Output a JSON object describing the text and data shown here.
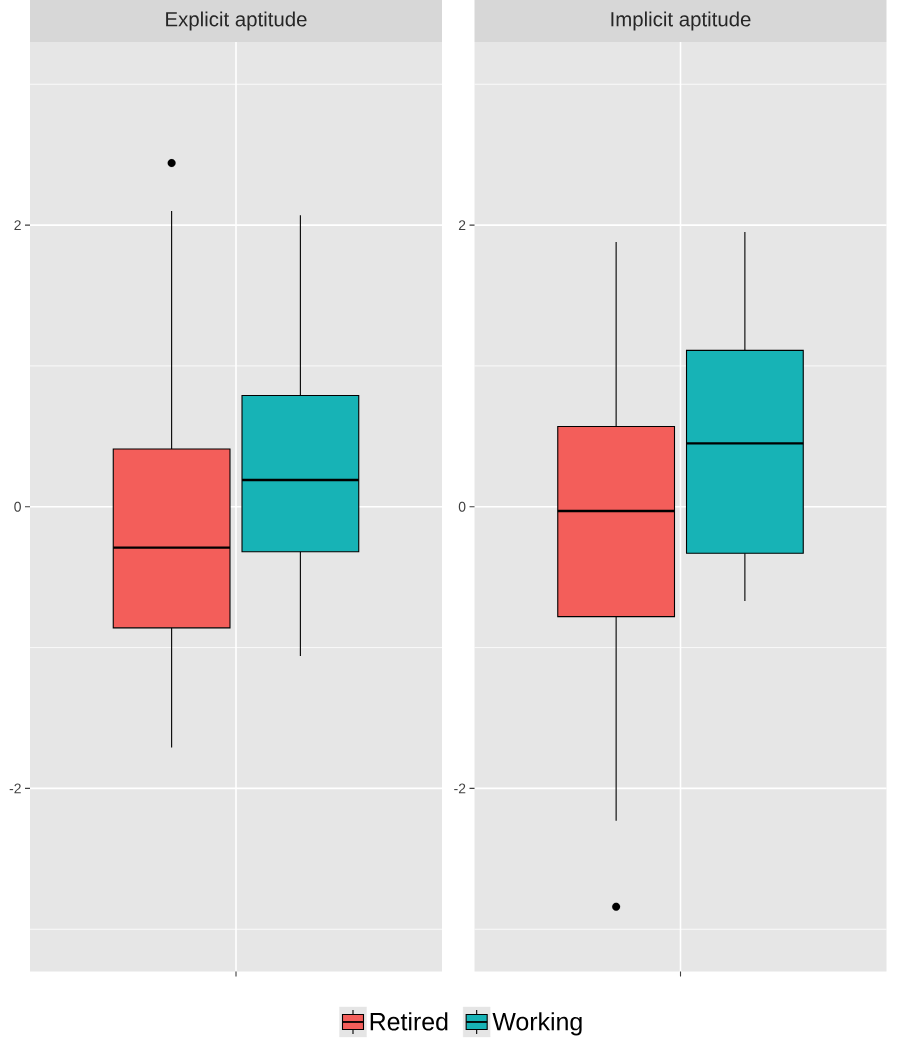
{
  "chart_data": [
    {
      "type": "box",
      "title": "Explicit aptitude",
      "categories": [
        null
      ],
      "series": [
        {
          "name": "Retired",
          "color": "#F35E5A",
          "boxes": [
            {
              "low": -1.71,
              "q1": -0.86,
              "median": -0.29,
              "q3": 0.41,
              "high": 2.1,
              "outliers": [
                2.44
              ]
            }
          ]
        },
        {
          "name": "Working",
          "color": "#17B3B6",
          "boxes": [
            {
              "low": -1.06,
              "q1": -0.32,
              "median": 0.19,
              "q3": 0.79,
              "high": 2.07
            }
          ]
        }
      ],
      "ylim": [
        -3.3,
        3.3
      ],
      "yticks": [
        -2,
        0,
        2
      ],
      "grid": true,
      "legend": "bottom",
      "tick_labels": "y"
    },
    {
      "type": "box",
      "title": "Implicit aptitude",
      "categories": [
        null
      ],
      "series": [
        {
          "color": "#F35E5A",
          "boxes": [
            {
              "low": -2.23,
              "q1": -0.78,
              "median": -0.03,
              "q3": 0.57,
              "high": 1.88,
              "outliers": [
                -2.84
              ]
            }
          ]
        },
        {
          "color": "#17B3B6",
          "boxes": [
            {
              "low": -0.67,
              "q1": -0.33,
              "median": 0.45,
              "q3": 1.11,
              "high": 1.95
            }
          ]
        }
      ],
      "ylim": [
        -3.3,
        3.3
      ],
      "yticks": [
        -2,
        0,
        2
      ],
      "grid": true,
      "tick_labels": "y"
    }
  ]
}
